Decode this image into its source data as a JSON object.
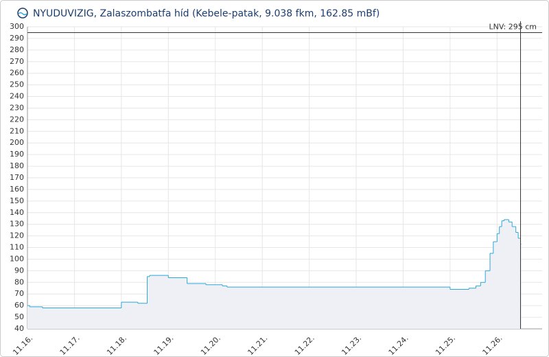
{
  "chart_data": {
    "type": "line",
    "step": true,
    "title": "NYUDUVIZIG, Zalaszombatfa híd (Kebele-patak, 9.038 fkm, 162.85 mBf)",
    "series": [
      {
        "color": "#2aa7d8",
        "fill": "#eef0f6",
        "x": [
          16.0,
          16.05,
          16.32,
          18.0,
          18.35,
          18.55,
          18.6,
          19.0,
          19.4,
          19.8,
          20.15,
          20.25,
          25.0,
          25.4,
          25.55,
          25.65,
          25.75,
          25.85,
          25.92,
          26.0,
          26.05,
          26.1,
          26.15,
          26.25,
          26.32,
          26.4,
          26.45,
          26.5
        ],
        "values": [
          60,
          59,
          58,
          63,
          62,
          85,
          86,
          84,
          79,
          78,
          77,
          76,
          74,
          75,
          77,
          80,
          90,
          105,
          115,
          122,
          128,
          133,
          134,
          132,
          128,
          123,
          118,
          113
        ]
      }
    ],
    "annotation": {
      "label": "LNV: 295 cm",
      "value": 295
    },
    "xlim": [
      16,
      26.96
    ],
    "xticks": [
      {
        "value": 16,
        "label": "11.16."
      },
      {
        "value": 17,
        "label": "11.17."
      },
      {
        "value": 18,
        "label": "11.18."
      },
      {
        "value": 19,
        "label": "11.19."
      },
      {
        "value": 20,
        "label": "11.20."
      },
      {
        "value": 21,
        "label": "11.21."
      },
      {
        "value": 22,
        "label": "11.22."
      },
      {
        "value": 23,
        "label": "11.23."
      },
      {
        "value": 24,
        "label": "11.24."
      },
      {
        "value": 25,
        "label": "11.25."
      },
      {
        "value": 26,
        "label": "11.26."
      }
    ],
    "ylim": [
      40,
      300
    ],
    "yticks": [
      40,
      50,
      60,
      70,
      80,
      90,
      100,
      110,
      120,
      130,
      140,
      150,
      160,
      170,
      180,
      190,
      200,
      210,
      220,
      230,
      240,
      250,
      260,
      270,
      280,
      290,
      300
    ],
    "grid": true
  }
}
